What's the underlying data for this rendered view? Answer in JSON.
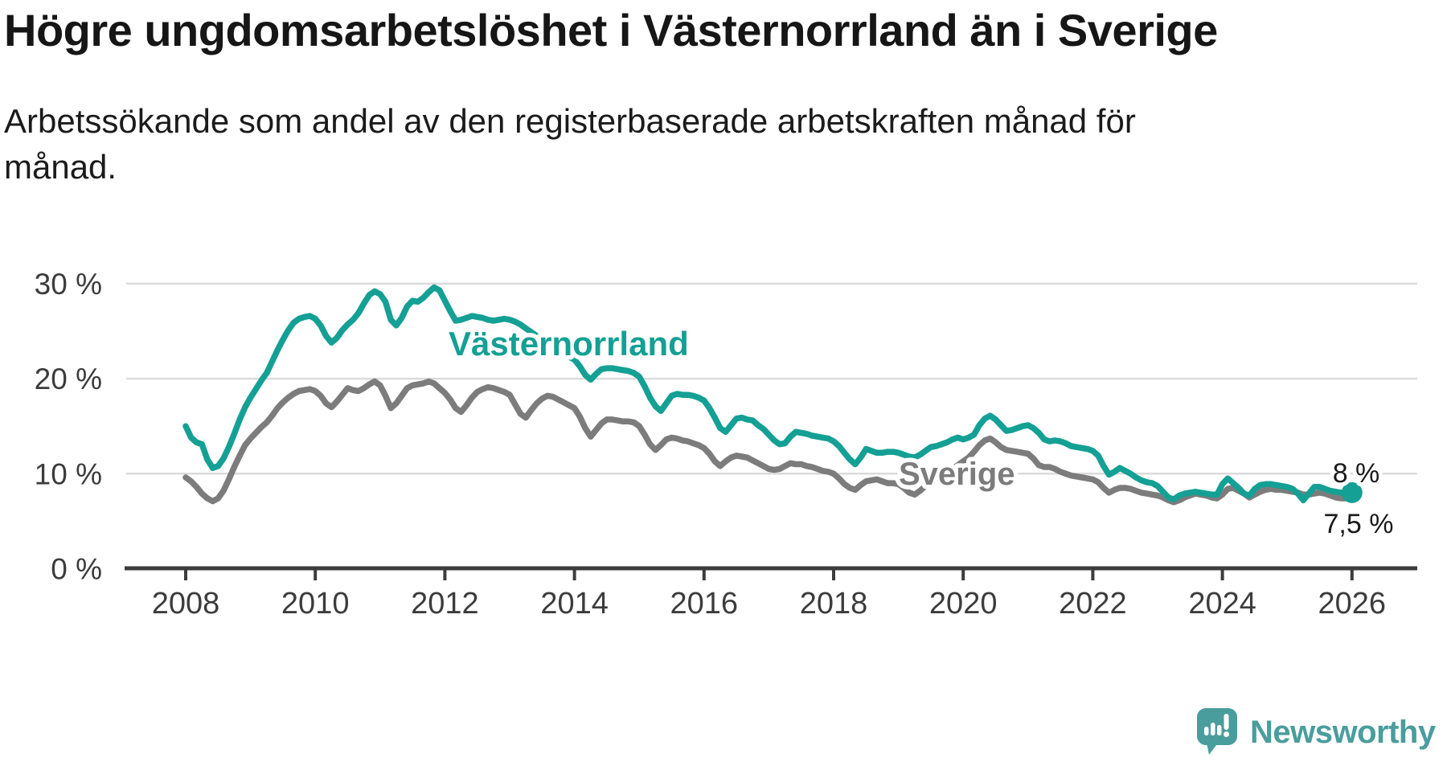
{
  "header": {
    "title": "Högre ungdomsarbetslöshet i Västernorrland än i Sverige",
    "subtitle_line1": "Arbetssökande som andel av den registerbaserade arbetskraften månad för",
    "subtitle_line2": "månad."
  },
  "chart_data": {
    "type": "line",
    "title": "Högre ungdomsarbetslöshet i Västernorrland än i Sverige",
    "subtitle": "Arbetssökande som andel av den registerbaserade arbetskraften månad för månad.",
    "x_start": "2008-01",
    "x_interval": "monthly",
    "xlim": [
      2007.1,
      2027.0
    ],
    "ylim": [
      0,
      34.5
    ],
    "grid": "horizontal-only",
    "legend": "inline-series-labels",
    "x_ticks": [
      2008,
      2010,
      2012,
      2014,
      2016,
      2018,
      2020,
      2022,
      2024,
      2026
    ],
    "x_tick_labels": [
      "2008",
      "2010",
      "2012",
      "2014",
      "2016",
      "2018",
      "2020",
      "2022",
      "2024",
      "2026"
    ],
    "y_ticks": [
      0,
      10,
      20,
      30
    ],
    "y_tick_labels": [
      "0 %",
      "10 %",
      "20 %",
      "30 %"
    ],
    "series": [
      {
        "name": "Västernorrland",
        "color": "#14A094",
        "end_value_label": "8 %",
        "values": [
          15.0,
          13.8,
          13.3,
          13.1,
          11.5,
          10.6,
          10.8,
          11.6,
          12.8,
          14.2,
          15.7,
          17.0,
          18.0,
          18.9,
          19.8,
          20.6,
          21.8,
          23.0,
          24.1,
          25.1,
          25.9,
          26.3,
          26.5,
          26.6,
          26.3,
          25.6,
          24.5,
          23.8,
          24.3,
          25.1,
          25.7,
          26.2,
          26.9,
          27.9,
          28.8,
          29.2,
          28.9,
          28.1,
          26.2,
          25.6,
          26.4,
          27.6,
          28.2,
          28.1,
          28.5,
          29.1,
          29.6,
          29.3,
          28.2,
          27.1,
          26.1,
          26.2,
          26.4,
          26.6,
          26.5,
          26.4,
          26.2,
          26.1,
          26.2,
          26.3,
          26.2,
          26.0,
          25.7,
          25.3,
          24.9,
          24.5,
          24.1,
          23.7,
          23.3,
          22.9,
          22.6,
          22.3,
          22.0,
          21.3,
          20.4,
          19.9,
          20.5,
          21.0,
          21.1,
          21.1,
          21.0,
          20.9,
          20.8,
          20.6,
          20.2,
          19.2,
          18.0,
          17.1,
          16.6,
          17.4,
          18.2,
          18.4,
          18.3,
          18.3,
          18.2,
          18.0,
          17.7,
          16.9,
          15.9,
          14.8,
          14.4,
          15.1,
          15.8,
          15.9,
          15.7,
          15.6,
          15.1,
          14.7,
          14.1,
          13.5,
          13.1,
          13.2,
          13.9,
          14.4,
          14.3,
          14.2,
          14.0,
          13.9,
          13.8,
          13.7,
          13.4,
          12.9,
          12.2,
          11.5,
          11.0,
          11.7,
          12.6,
          12.4,
          12.2,
          12.2,
          12.3,
          12.3,
          12.2,
          12.0,
          11.8,
          11.7,
          12.0,
          12.4,
          12.8,
          12.9,
          13.1,
          13.3,
          13.6,
          13.8,
          13.6,
          13.8,
          14.1,
          15.1,
          15.8,
          16.1,
          15.7,
          15.1,
          14.5,
          14.6,
          14.8,
          15.0,
          15.1,
          14.8,
          14.3,
          13.6,
          13.4,
          13.5,
          13.4,
          13.2,
          12.9,
          12.8,
          12.7,
          12.6,
          12.4,
          11.9,
          10.8,
          9.9,
          10.2,
          10.6,
          10.3,
          10.0,
          9.6,
          9.3,
          9.1,
          9.0,
          8.7,
          8.1,
          7.5,
          7.3,
          7.7,
          7.9,
          8.0,
          8.1,
          8.0,
          7.9,
          7.8,
          7.8,
          8.9,
          9.5,
          9.0,
          8.5,
          7.9,
          7.7,
          8.4,
          8.8,
          8.9,
          8.9,
          8.8,
          8.7,
          8.6,
          8.4,
          7.9,
          7.2,
          7.9,
          8.6,
          8.6,
          8.4,
          8.2,
          8.1,
          8.0,
          8.0,
          8.0
        ]
      },
      {
        "name": "Sverige",
        "color": "#7C7C7C",
        "end_value_label": "7,5 %",
        "values": [
          9.6,
          9.2,
          8.6,
          7.9,
          7.4,
          7.1,
          7.4,
          8.2,
          9.4,
          10.7,
          11.9,
          13.0,
          13.7,
          14.3,
          14.9,
          15.4,
          16.1,
          16.9,
          17.5,
          18.0,
          18.4,
          18.7,
          18.8,
          18.9,
          18.7,
          18.2,
          17.4,
          17.0,
          17.6,
          18.3,
          19.0,
          18.8,
          18.7,
          19.0,
          19.4,
          19.7,
          19.3,
          18.2,
          16.9,
          17.4,
          18.2,
          19.0,
          19.3,
          19.4,
          19.5,
          19.7,
          19.5,
          19.0,
          18.5,
          17.8,
          16.9,
          16.5,
          17.2,
          18.0,
          18.6,
          18.9,
          19.1,
          19.0,
          18.8,
          18.6,
          18.3,
          17.3,
          16.3,
          15.9,
          16.7,
          17.4,
          17.9,
          18.2,
          18.1,
          17.8,
          17.5,
          17.2,
          16.9,
          16.0,
          14.8,
          13.9,
          14.6,
          15.3,
          15.7,
          15.7,
          15.6,
          15.5,
          15.5,
          15.4,
          15.0,
          14.1,
          13.1,
          12.5,
          13.0,
          13.6,
          13.8,
          13.7,
          13.5,
          13.4,
          13.2,
          13.0,
          12.7,
          12.1,
          11.3,
          10.8,
          11.3,
          11.7,
          11.9,
          11.8,
          11.7,
          11.4,
          11.1,
          10.8,
          10.5,
          10.4,
          10.5,
          10.8,
          11.1,
          11.0,
          11.0,
          10.8,
          10.7,
          10.5,
          10.3,
          10.2,
          10.0,
          9.5,
          8.9,
          8.5,
          8.3,
          8.8,
          9.2,
          9.3,
          9.4,
          9.2,
          9.0,
          9.0,
          8.9,
          8.5,
          8.0,
          7.8,
          8.2,
          8.7,
          9.0,
          9.3,
          9.7,
          10.1,
          10.5,
          10.9,
          11.3,
          11.7,
          12.3,
          13.0,
          13.5,
          13.7,
          13.3,
          12.8,
          12.5,
          12.4,
          12.3,
          12.2,
          12.1,
          11.6,
          10.9,
          10.7,
          10.7,
          10.5,
          10.2,
          10.0,
          9.8,
          9.7,
          9.6,
          9.5,
          9.4,
          9.1,
          8.5,
          8.0,
          8.3,
          8.5,
          8.5,
          8.4,
          8.2,
          8.0,
          7.9,
          7.8,
          7.7,
          7.5,
          7.2,
          7.0,
          7.2,
          7.5,
          7.7,
          7.9,
          7.8,
          7.7,
          7.5,
          7.4,
          7.8,
          8.4,
          8.5,
          8.2,
          7.9,
          7.5,
          7.8,
          8.1,
          8.3,
          8.4,
          8.3,
          8.3,
          8.2,
          8.1,
          8.0,
          7.8,
          7.8,
          7.9,
          8.0,
          7.9,
          7.7,
          7.5,
          7.4,
          7.4,
          7.5
        ]
      }
    ],
    "end_dot_series": "Västernorrland"
  },
  "colors": {
    "vasternorrland_line": "#14A094",
    "sverige_line": "#7C7C7C",
    "gridline": "#DBDBDB",
    "axis": "#3C3C3C",
    "tick_label": "#3C3C3C",
    "title_text": "#161616",
    "end_label_text": "#1A1A1A",
    "brand_teal": "#4A9D9D",
    "background": "#FFFFFF"
  },
  "footer": {
    "brand": "Newsworthy"
  }
}
